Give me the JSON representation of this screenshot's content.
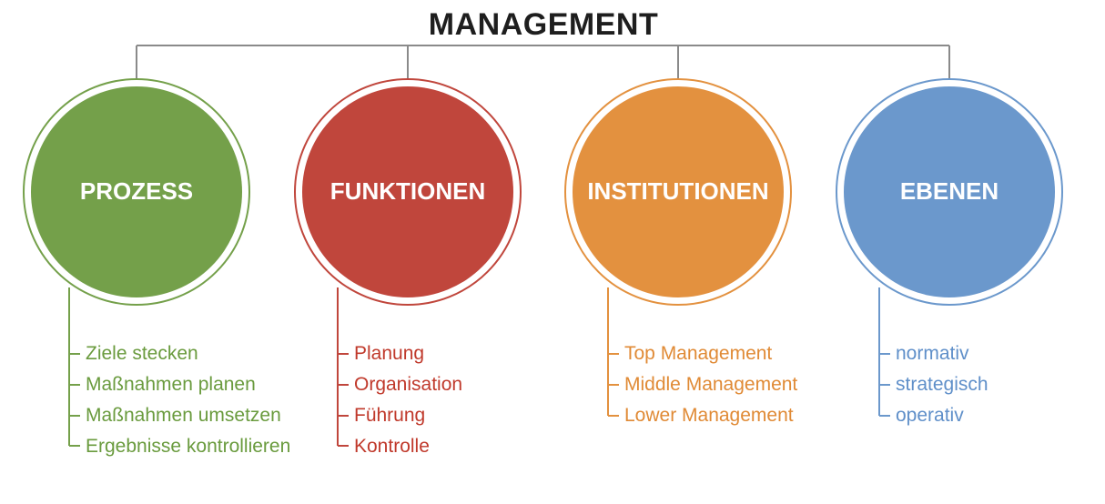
{
  "title": "MANAGEMENT",
  "branches": [
    {
      "label": "PROZESS",
      "color": "#74a04a",
      "text_color": "#6a9b3e",
      "items": [
        "Ziele stecken",
        "Maßnahmen planen",
        "Maßnahmen umsetzen",
        "Ergebnisse kontrollieren"
      ]
    },
    {
      "label": "FUNKTIONEN",
      "color": "#c0463c",
      "text_color": "#c0392b",
      "items": [
        "Planung",
        "Organisation",
        "Führung",
        "Kontrolle"
      ]
    },
    {
      "label": "INSTITUTIONEN",
      "color": "#e3913f",
      "text_color": "#e08a35",
      "items": [
        "Top Management",
        "Middle Management",
        "Lower Management"
      ]
    },
    {
      "label": "EBENEN",
      "color": "#6b98cc",
      "text_color": "#5f8fc9",
      "items": [
        "normativ",
        "strategisch",
        "operativ"
      ]
    }
  ]
}
